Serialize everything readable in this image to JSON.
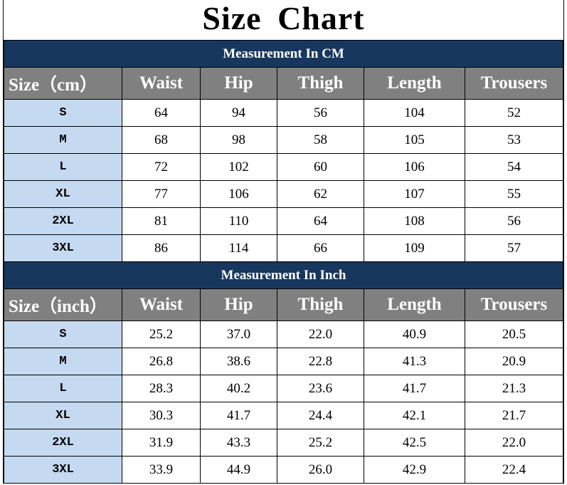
{
  "title": "Size  Chart",
  "colors": {
    "band": "#17375e",
    "header": "#808080",
    "size_column": "#c5d9f1"
  },
  "sections": [
    {
      "heading": "Measurement In CM",
      "columns": [
        "Size（cm）",
        "Waist",
        "Hip",
        "Thigh",
        "Length",
        "Trousers"
      ],
      "rows": [
        [
          "S",
          "64",
          "94",
          "56",
          "104",
          "52"
        ],
        [
          "M",
          "68",
          "98",
          "58",
          "105",
          "53"
        ],
        [
          "L",
          "72",
          "102",
          "60",
          "106",
          "54"
        ],
        [
          "XL",
          "77",
          "106",
          "62",
          "107",
          "55"
        ],
        [
          "2XL",
          "81",
          "110",
          "64",
          "108",
          "56"
        ],
        [
          "3XL",
          "86",
          "114",
          "66",
          "109",
          "57"
        ]
      ]
    },
    {
      "heading": "Measurement In Inch",
      "columns": [
        "Size（inch）",
        "Waist",
        "Hip",
        "Thigh",
        "Length",
        "Trousers"
      ],
      "rows": [
        [
          "S",
          "25.2",
          "37.0",
          "22.0",
          "40.9",
          "20.5"
        ],
        [
          "M",
          "26.8",
          "38.6",
          "22.8",
          "41.3",
          "20.9"
        ],
        [
          "L",
          "28.3",
          "40.2",
          "23.6",
          "41.7",
          "21.3"
        ],
        [
          "XL",
          "30.3",
          "41.7",
          "24.4",
          "42.1",
          "21.7"
        ],
        [
          "2XL",
          "31.9",
          "43.3",
          "25.2",
          "42.5",
          "22.0"
        ],
        [
          "3XL",
          "33.9",
          "44.9",
          "26.0",
          "42.9",
          "22.4"
        ]
      ]
    }
  ]
}
